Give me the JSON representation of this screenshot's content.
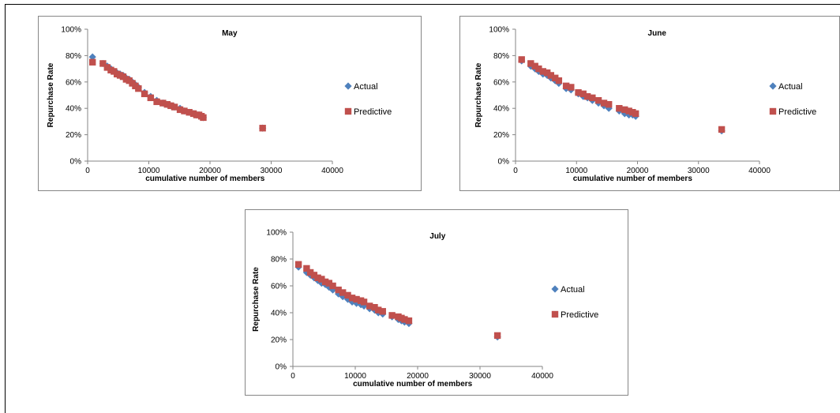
{
  "colors": {
    "actual": "#4F81BD",
    "predictive": "#C0504D",
    "border": "#868686"
  },
  "chart_data": [
    {
      "type": "scatter",
      "title": "May",
      "xlabel": "cumulative number of members",
      "ylabel": "Repurchase Rate",
      "xlim": [
        0,
        40000
      ],
      "ylim": [
        0,
        1
      ],
      "xticks": [
        "0",
        "10000",
        "20000",
        "30000",
        "40000"
      ],
      "yticks": [
        "0%",
        "20%",
        "40%",
        "60%",
        "80%",
        "100%"
      ],
      "grid": false,
      "legend": "right",
      "series": [
        {
          "name": "Actual",
          "marker": "diamond",
          "x": [
            800,
            2500,
            3200,
            3800,
            4300,
            4800,
            5300,
            5800,
            6300,
            6800,
            7300,
            7800,
            8300,
            9300,
            10300,
            11300,
            12300,
            13000,
            13600,
            14200,
            15100,
            15800,
            16600,
            17300,
            17800,
            18200,
            18600,
            18900,
            28600
          ],
          "y": [
            0.79,
            0.74,
            0.72,
            0.7,
            0.68,
            0.67,
            0.66,
            0.65,
            0.63,
            0.62,
            0.6,
            0.58,
            0.56,
            0.52,
            0.49,
            0.46,
            0.44,
            0.43,
            0.42,
            0.41,
            0.4,
            0.38,
            0.37,
            0.36,
            0.35,
            0.35,
            0.34,
            0.33,
            0.25
          ]
        },
        {
          "name": "Predictive",
          "marker": "square",
          "x": [
            800,
            2500,
            3200,
            3800,
            4300,
            4800,
            5300,
            5800,
            6300,
            6800,
            7300,
            7800,
            8300,
            9300,
            10300,
            11300,
            12300,
            13000,
            13600,
            14200,
            15100,
            15800,
            16600,
            17300,
            17800,
            18200,
            18600,
            18900,
            28600
          ],
          "y": [
            0.75,
            0.74,
            0.71,
            0.69,
            0.68,
            0.66,
            0.65,
            0.64,
            0.62,
            0.61,
            0.59,
            0.57,
            0.55,
            0.51,
            0.48,
            0.45,
            0.44,
            0.43,
            0.42,
            0.41,
            0.39,
            0.38,
            0.37,
            0.36,
            0.35,
            0.35,
            0.34,
            0.33,
            0.25
          ]
        }
      ]
    },
    {
      "type": "scatter",
      "title": "June",
      "xlabel": "cumulative number of members",
      "ylabel": "Repurchase Rate",
      "xlim": [
        0,
        40000
      ],
      "ylim": [
        0,
        1
      ],
      "xticks": [
        "0",
        "10000",
        "20000",
        "30000",
        "40000"
      ],
      "yticks": [
        "0%",
        "20%",
        "40%",
        "60%",
        "80%",
        "100%"
      ],
      "grid": false,
      "legend": "right",
      "series": [
        {
          "name": "Actual",
          "marker": "diamond",
          "x": [
            1000,
            2500,
            3200,
            3800,
            4500,
            5200,
            5800,
            6500,
            7100,
            8300,
            9100,
            10300,
            11100,
            11800,
            12600,
            13600,
            14500,
            15300,
            17000,
            17900,
            18600,
            19200,
            19700,
            33800
          ],
          "y": [
            0.76,
            0.72,
            0.7,
            0.68,
            0.66,
            0.65,
            0.63,
            0.61,
            0.59,
            0.55,
            0.54,
            0.51,
            0.49,
            0.48,
            0.46,
            0.44,
            0.42,
            0.4,
            0.38,
            0.36,
            0.35,
            0.35,
            0.34,
            0.23
          ]
        },
        {
          "name": "Predictive",
          "marker": "square",
          "x": [
            1000,
            2500,
            3200,
            3800,
            4500,
            5200,
            5800,
            6500,
            7100,
            8300,
            9100,
            10300,
            11100,
            11800,
            12600,
            13600,
            14500,
            15300,
            17000,
            17900,
            18600,
            19200,
            19700,
            33800
          ],
          "y": [
            0.77,
            0.74,
            0.72,
            0.7,
            0.68,
            0.67,
            0.65,
            0.63,
            0.61,
            0.57,
            0.56,
            0.52,
            0.51,
            0.49,
            0.48,
            0.46,
            0.44,
            0.43,
            0.4,
            0.39,
            0.38,
            0.37,
            0.36,
            0.24
          ]
        }
      ]
    },
    {
      "type": "scatter",
      "title": "July",
      "xlabel": "cumulative number of members",
      "ylabel": "Repurchase Rate",
      "xlim": [
        0,
        40000
      ],
      "ylim": [
        0,
        1
      ],
      "xticks": [
        "0",
        "10000",
        "20000",
        "30000",
        "40000"
      ],
      "yticks": [
        "0%",
        "20%",
        "40%",
        "60%",
        "80%",
        "100%"
      ],
      "grid": false,
      "legend": "right",
      "series": [
        {
          "name": "Actual",
          "marker": "diamond",
          "x": [
            900,
            2200,
            2800,
            3400,
            4000,
            4600,
            5200,
            5800,
            6400,
            7300,
            8000,
            8800,
            9500,
            10200,
            10900,
            11400,
            12300,
            13100,
            13700,
            14400,
            15900,
            16900,
            17400,
            17900,
            18600,
            32800
          ],
          "y": [
            0.74,
            0.7,
            0.68,
            0.66,
            0.64,
            0.62,
            0.61,
            0.59,
            0.57,
            0.54,
            0.52,
            0.5,
            0.48,
            0.47,
            0.46,
            0.45,
            0.43,
            0.42,
            0.4,
            0.39,
            0.37,
            0.35,
            0.34,
            0.33,
            0.32,
            0.22
          ]
        },
        {
          "name": "Predictive",
          "marker": "square",
          "x": [
            900,
            2200,
            2800,
            3400,
            4000,
            4600,
            5200,
            5800,
            6400,
            7300,
            8000,
            8800,
            9500,
            10200,
            10900,
            11400,
            12300,
            13100,
            13700,
            14400,
            15900,
            16900,
            17400,
            17900,
            18600,
            32800
          ],
          "y": [
            0.76,
            0.73,
            0.7,
            0.68,
            0.66,
            0.65,
            0.63,
            0.62,
            0.6,
            0.57,
            0.55,
            0.53,
            0.51,
            0.5,
            0.49,
            0.48,
            0.45,
            0.44,
            0.42,
            0.41,
            0.38,
            0.37,
            0.36,
            0.35,
            0.34,
            0.23
          ]
        }
      ]
    }
  ]
}
